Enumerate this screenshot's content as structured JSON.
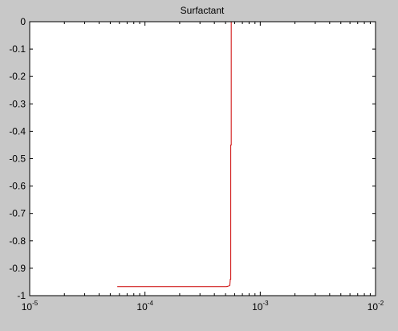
{
  "figure": {
    "background": "#c8c8c8",
    "axes_background": "#ffffff"
  },
  "chart_data": {
    "type": "line",
    "title": "Surfactant",
    "xlabel": "",
    "ylabel": "",
    "xscale": "log",
    "xlim": [
      1e-05,
      0.01
    ],
    "ylim": [
      -1,
      0
    ],
    "grid": false,
    "legend": "none",
    "x_ticks": [
      {
        "value": 1e-05,
        "base": "10",
        "exp": "-5"
      },
      {
        "value": 0.0001,
        "base": "10",
        "exp": "-4"
      },
      {
        "value": 0.001,
        "base": "10",
        "exp": "-3"
      },
      {
        "value": 0.01,
        "base": "10",
        "exp": "-2"
      }
    ],
    "y_ticks": [
      {
        "value": 0,
        "label": "0"
      },
      {
        "value": -0.1,
        "label": "-0.1"
      },
      {
        "value": -0.2,
        "label": "-0.2"
      },
      {
        "value": -0.3,
        "label": "-0.3"
      },
      {
        "value": -0.4,
        "label": "-0.4"
      },
      {
        "value": -0.5,
        "label": "-0.5"
      },
      {
        "value": -0.6,
        "label": "-0.6"
      },
      {
        "value": -0.7,
        "label": "-0.7"
      },
      {
        "value": -0.8,
        "label": "-0.8"
      },
      {
        "value": -0.9,
        "label": "-0.9"
      },
      {
        "value": -1,
        "label": "-1"
      }
    ],
    "series": [
      {
        "color": "#cc0000",
        "x": [
          5.75e-05,
          0.00051,
          0.00052,
          0.00053,
          0.00054,
          0.000545,
          0.00055,
          0.000555,
          0.000555,
          0.00056,
          0.00056
        ],
        "y": [
          -0.967,
          -0.967,
          -0.966,
          -0.965,
          -0.964,
          -0.962,
          -0.94,
          -0.94,
          -0.45,
          -0.45,
          0
        ]
      }
    ]
  }
}
